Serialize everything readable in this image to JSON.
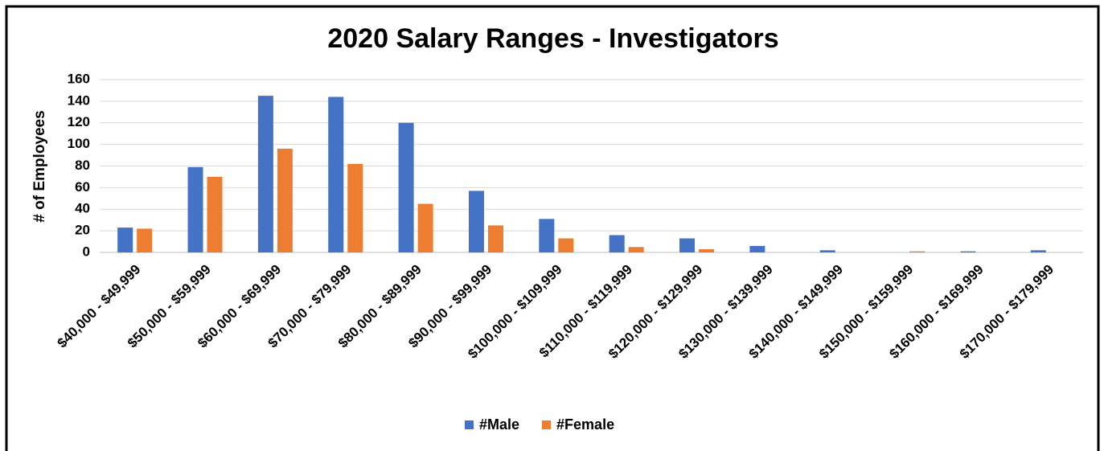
{
  "chart_data": {
    "type": "bar",
    "title": "2020 Salary Ranges - Investigators",
    "y_label": "# of Employees",
    "categories": [
      "$40,000 - $49,999",
      "$50,000 - $59,999",
      "$60,000 - $69,999",
      "$70,000 - $79,999",
      "$80,000 - $89,999",
      "$90,000 - $99,999",
      "$100,000 - $109,999",
      "$110,000 - $119,999",
      "$120,000 - $129,999",
      "$130,000 - $139,999",
      "$140,000 - $149,999",
      "$150,000 - $159,999",
      "$160,000 - $169,999",
      "$170,000 - $179,999"
    ],
    "series": [
      {
        "name": "#Male",
        "color": "#4472c4",
        "values": [
          23,
          79,
          145,
          144,
          120,
          57,
          31,
          16,
          13,
          6,
          2,
          0,
          1,
          2
        ]
      },
      {
        "name": "#Female",
        "color": "#ed7d31",
        "values": [
          22,
          70,
          96,
          82,
          45,
          25,
          13,
          5,
          3,
          0,
          0,
          1,
          0,
          0
        ]
      }
    ],
    "ylim": [
      0,
      160
    ],
    "yticks": [
      0,
      20,
      40,
      60,
      80,
      100,
      120,
      140,
      160
    ],
    "grid": true,
    "legend": "bottom"
  }
}
